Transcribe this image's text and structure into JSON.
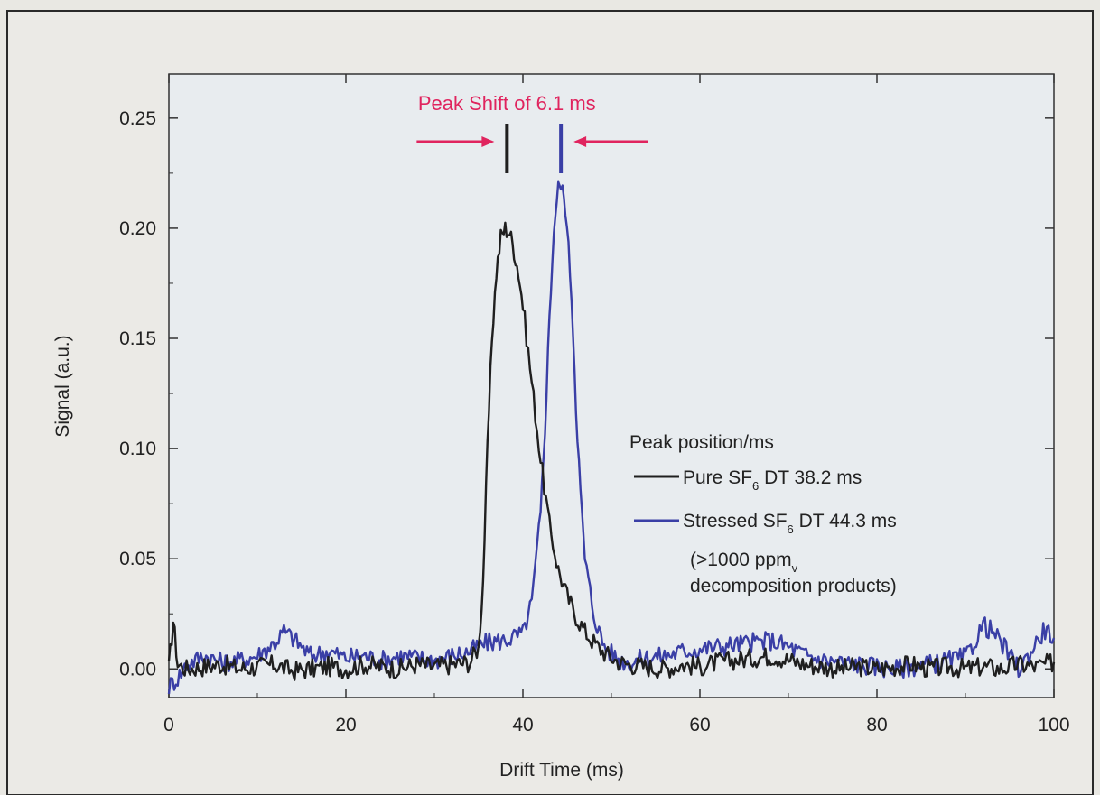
{
  "chart_data": {
    "type": "line",
    "xlabel": "Drift Time (ms)",
    "ylabel": "Signal (a.u.)",
    "xlim": [
      0,
      100
    ],
    "ylim": [
      -0.013,
      0.27
    ],
    "x_ticks": [
      0,
      20,
      40,
      60,
      80,
      100
    ],
    "x_tick_labels": [
      "0",
      "20",
      "40",
      "60",
      "80",
      "100"
    ],
    "y_ticks": [
      0.0,
      0.05,
      0.1,
      0.15,
      0.2,
      0.25
    ],
    "y_tick_labels": [
      "0.00",
      "0.05",
      "0.10",
      "0.15",
      "0.20",
      "0.25"
    ],
    "grid": false,
    "legend_placement": "center-right",
    "legend": {
      "title": "Peak position/ms",
      "line1": "(>1000 ppm",
      "line1_sub": "v",
      "line2": "decomposition products)"
    },
    "annotation": {
      "text": "Peak Shift of 6.1 ms",
      "color": "#e0245e",
      "from_x": 38.2,
      "to_x": 44.3
    },
    "series": [
      {
        "name": "Pure SF6 DT 38.2 ms",
        "legend_prefix": "Pure SF",
        "legend_sub": "6",
        "legend_suffix": " DT 38.2 ms",
        "color": "#1f1f1f",
        "x": [
          0,
          0.5,
          1,
          2,
          4,
          6,
          8,
          10,
          12,
          14,
          16,
          18,
          20,
          22,
          24,
          26,
          28,
          30,
          32,
          34,
          35,
          35.5,
          36,
          36.5,
          37,
          37.5,
          38,
          38.5,
          39,
          39.5,
          40,
          41,
          42,
          43,
          44,
          45,
          46,
          47,
          48,
          49,
          50,
          51,
          52,
          54,
          56,
          58,
          60,
          62,
          64,
          66,
          68,
          70,
          72,
          74,
          76,
          78,
          80,
          82,
          84,
          86,
          88,
          90,
          92,
          94,
          96,
          98,
          100
        ],
        "values": [
          0.0,
          0.022,
          0.002,
          0.0,
          0.001,
          0.002,
          0.0,
          0.001,
          0.002,
          -0.001,
          0.0,
          0.001,
          0.0,
          0.002,
          0.001,
          0.0,
          0.002,
          0.001,
          0.002,
          0.003,
          0.01,
          0.04,
          0.1,
          0.15,
          0.18,
          0.196,
          0.2,
          0.198,
          0.19,
          0.18,
          0.165,
          0.13,
          0.095,
          0.065,
          0.045,
          0.033,
          0.024,
          0.017,
          0.012,
          0.008,
          0.005,
          0.003,
          0.002,
          0.001,
          0.0,
          0.002,
          0.001,
          0.003,
          0.004,
          0.005,
          0.006,
          0.004,
          0.002,
          0.001,
          0.0,
          0.001,
          0.0,
          0.001,
          0.002,
          0.0,
          0.001,
          0.0,
          0.001,
          0.0,
          0.002,
          0.001,
          0.003
        ]
      },
      {
        "name": "Stressed SF6 DT 44.3 ms",
        "legend_prefix": "Stressed SF",
        "legend_sub": "6",
        "legend_suffix": " DT 44.3 ms",
        "color": "#3a3fa6",
        "x": [
          0,
          1,
          2,
          4,
          6,
          8,
          10,
          12,
          13,
          14,
          16,
          18,
          20,
          22,
          24,
          26,
          28,
          30,
          32,
          34,
          36,
          38,
          40,
          41,
          42,
          42.5,
          43,
          43.5,
          44,
          44.3,
          44.8,
          45.5,
          46,
          46.5,
          47,
          48,
          49,
          50,
          51,
          52,
          54,
          56,
          58,
          60,
          62,
          64,
          66,
          68,
          70,
          72,
          74,
          76,
          78,
          80,
          82,
          84,
          86,
          88,
          90,
          91,
          92,
          93,
          94,
          95,
          96,
          97,
          98,
          99,
          100
        ],
        "values": [
          -0.008,
          -0.004,
          0.002,
          0.006,
          0.003,
          0.004,
          0.006,
          0.012,
          0.017,
          0.014,
          0.006,
          0.008,
          0.005,
          0.006,
          0.004,
          0.006,
          0.005,
          0.004,
          0.006,
          0.008,
          0.012,
          0.013,
          0.016,
          0.03,
          0.07,
          0.11,
          0.16,
          0.2,
          0.218,
          0.22,
          0.21,
          0.17,
          0.12,
          0.08,
          0.05,
          0.025,
          0.012,
          0.007,
          0.004,
          0.003,
          0.005,
          0.006,
          0.008,
          0.009,
          0.01,
          0.011,
          0.012,
          0.013,
          0.01,
          0.006,
          0.004,
          0.003,
          0.002,
          0.001,
          0.0,
          0.001,
          0.002,
          0.004,
          0.005,
          0.012,
          0.02,
          0.017,
          0.012,
          0.006,
          0.0,
          0.005,
          0.012,
          0.018,
          0.014
        ]
      }
    ]
  }
}
